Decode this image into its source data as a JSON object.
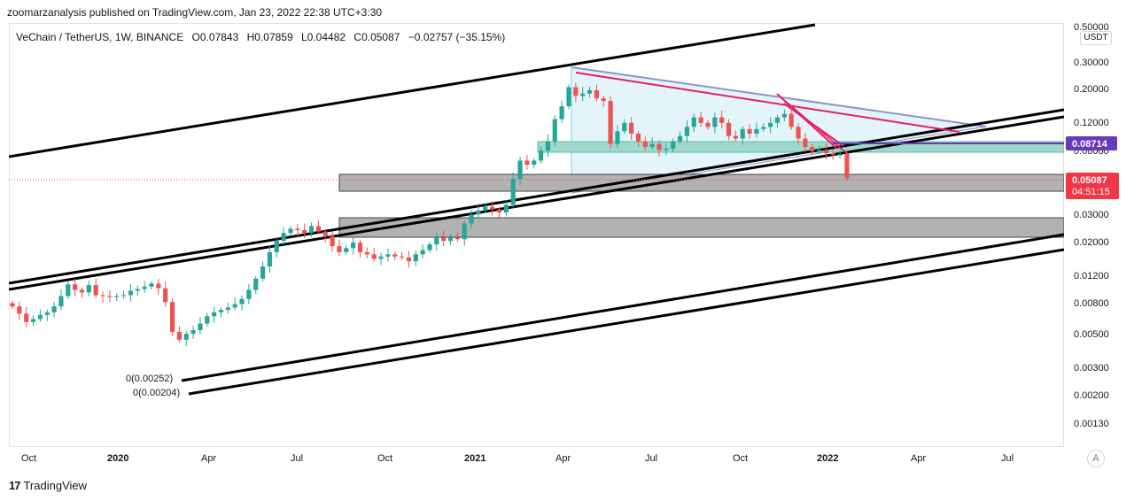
{
  "header": {
    "published": "zoomarzanalysis published on TradingView.com, Jan 23, 2022 22:38 UTC+3:30",
    "symbol": "VeChain / TetherUS, 1W, BINANCE",
    "open": "O0.07843",
    "high": "H0.07859",
    "low": "L0.04482",
    "close": "C0.05087",
    "change": "−0.02757 (−35.15%)"
  },
  "currency_button": "USDT",
  "autoscale_button": "A",
  "footer": {
    "brand": "TradingView",
    "logo_mark": "17"
  },
  "colors": {
    "up": "#26a69a",
    "down": "#ef5350",
    "pink_line": "#e91e63",
    "purple_level": "#673ab7",
    "price_label": "#f23645",
    "zone_gray": "#b2b2b2",
    "zone_teal": "#9fd9cc",
    "triangle_fill": "#e3f5fb"
  },
  "chart_data": {
    "type": "candlestick",
    "scale": "log",
    "interval": "1W",
    "x_ticks": [
      "Oct",
      "2020",
      "Apr",
      "Jul",
      "Oct",
      "2021",
      "Apr",
      "Jul",
      "Oct",
      "2022",
      "Apr",
      "Jul"
    ],
    "y_ticks": [
      "0.50000",
      "0.30000",
      "0.20000",
      "0.12000",
      "0.08000",
      "0.03000",
      "0.02000",
      "0.01200",
      "0.00800",
      "0.00500",
      "0.00300",
      "0.00200",
      "0.00130"
    ],
    "ylim": [
      0.001,
      0.5
    ],
    "current_price": {
      "label": "0.05087",
      "value": 0.05087,
      "countdown": "04:51:15"
    },
    "horizontal_level": {
      "label": "0.08714",
      "value": 0.08714
    },
    "annotations": [
      {
        "text": "0(0.00252)",
        "value": 0.00252
      },
      {
        "text": "0(0.00204)",
        "value": 0.00204
      }
    ],
    "close_path": [
      0.0048,
      0.0042,
      0.0036,
      0.0038,
      0.0041,
      0.0043,
      0.0048,
      0.0058,
      0.0072,
      0.0065,
      0.0062,
      0.0071,
      0.0059,
      0.0058,
      0.0057,
      0.0058,
      0.0059,
      0.0064,
      0.0066,
      0.0069,
      0.0073,
      0.0067,
      0.0052,
      0.003,
      0.0026,
      0.0029,
      0.0031,
      0.0035,
      0.004,
      0.0043,
      0.0045,
      0.0047,
      0.005,
      0.0055,
      0.0065,
      0.008,
      0.01,
      0.013,
      0.016,
      0.0185,
      0.02,
      0.0195,
      0.0185,
      0.021,
      0.019,
      0.0175,
      0.0145,
      0.013,
      0.014,
      0.0155,
      0.013,
      0.0125,
      0.0115,
      0.012,
      0.0125,
      0.012,
      0.0118,
      0.011,
      0.0125,
      0.0135,
      0.015,
      0.017,
      0.016,
      0.017,
      0.0165,
      0.022,
      0.026,
      0.028,
      0.03,
      0.0285,
      0.027,
      0.031,
      0.05,
      0.07,
      0.065,
      0.07,
      0.084,
      0.1,
      0.15,
      0.19,
      0.27,
      0.23,
      0.24,
      0.255,
      0.22,
      0.21,
      0.095,
      0.12,
      0.14,
      0.115,
      0.1,
      0.09,
      0.095,
      0.085,
      0.087,
      0.1,
      0.11,
      0.13,
      0.155,
      0.14,
      0.13,
      0.155,
      0.14,
      0.11,
      0.105,
      0.125,
      0.115,
      0.125,
      0.13,
      0.14,
      0.155,
      0.165,
      0.13,
      0.105,
      0.09,
      0.083,
      0.085,
      0.08,
      0.078,
      0.0784,
      0.0509
    ]
  }
}
